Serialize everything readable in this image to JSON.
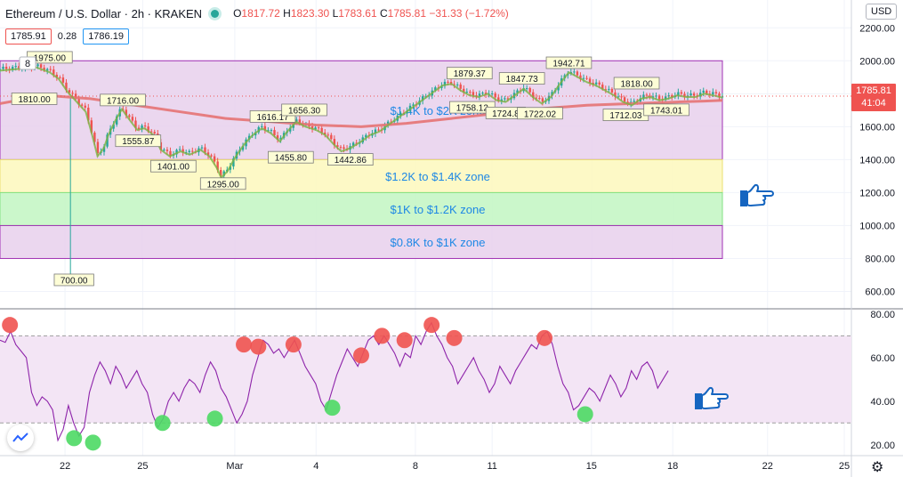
{
  "header": {
    "title": "Ethereum / U.S. Dollar · 2h · KRAKEN",
    "ohlc_o_label": "O",
    "ohlc_o": "1817.72",
    "ohlc_h_label": "H",
    "ohlc_h": "1823.30",
    "ohlc_l_label": "L",
    "ohlc_l": "1783.61",
    "ohlc_c_label": "C",
    "ohlc_c": "1785.81",
    "change": "−31.33 (−1.72%)",
    "bid": "1785.91",
    "spread": "0.28",
    "ask": "1786.19",
    "currency": "USD",
    "last_price": "1785.81",
    "countdown": "41:04",
    "indicator_count": "8"
  },
  "colors": {
    "up": "#26a69a",
    "down": "#ef5350",
    "ema": "#e57373",
    "ma_fast": "#7cb342",
    "zone_purple": "#ead5ef",
    "zone_yellow": "#fdf9c4",
    "zone_green": "#c9f7c9",
    "oscillator": "#8e24aa",
    "overbought_marker": "#ef5350",
    "oversold_marker": "#4cd964",
    "hand_icon": "#1565c0"
  },
  "chart_data": [
    {
      "type": "candlestick",
      "ylim": [
        500,
        2250
      ],
      "y_ticks": [
        600,
        800,
        1000,
        1200,
        1400,
        1600,
        1800,
        2000,
        2200
      ],
      "y_tick_labels": [
        "600.00",
        "800.00",
        "1000.00",
        "1200.00",
        "1400.00",
        "1600.00",
        "1800.00",
        "2000.00",
        "2200.00"
      ],
      "x_ticks": [
        "22",
        "25",
        "Mar",
        "4",
        "8",
        "11",
        "15",
        "18",
        "22",
        "25"
      ],
      "x_tick_pos": [
        0.072,
        0.158,
        0.26,
        0.35,
        0.46,
        0.545,
        0.655,
        0.745,
        0.85,
        0.935
      ],
      "zones": [
        {
          "label": "$1.4K to $2K zone",
          "low": 1400,
          "high": 2000,
          "color": "#ead5ef"
        },
        {
          "label": "$1.2K to $1.4K zone",
          "low": 1200,
          "high": 1400,
          "color": "#fdf9c4"
        },
        {
          "label": "$1K to $1.2K zone",
          "low": 1000,
          "high": 1200,
          "color": "#c9f7c9"
        },
        {
          "label": "$0.8K to $1K zone",
          "low": 800,
          "high": 1000,
          "color": "#ead5ef"
        }
      ],
      "price_path": [
        [
          0.0,
          1950
        ],
        [
          0.02,
          1960
        ],
        [
          0.04,
          1970
        ],
        [
          0.055,
          1940
        ],
        [
          0.065,
          1900
        ],
        [
          0.075,
          1820
        ],
        [
          0.085,
          1760
        ],
        [
          0.095,
          1700
        ],
        [
          0.102,
          1560
        ],
        [
          0.108,
          1430
        ],
        [
          0.115,
          1480
        ],
        [
          0.12,
          1560
        ],
        [
          0.128,
          1650
        ],
        [
          0.135,
          1716
        ],
        [
          0.145,
          1640
        ],
        [
          0.152,
          1590
        ],
        [
          0.16,
          1600
        ],
        [
          0.17,
          1560
        ],
        [
          0.178,
          1470
        ],
        [
          0.188,
          1430
        ],
        [
          0.2,
          1460
        ],
        [
          0.21,
          1440
        ],
        [
          0.222,
          1470
        ],
        [
          0.232,
          1430
        ],
        [
          0.24,
          1360
        ],
        [
          0.245,
          1300
        ],
        [
          0.252,
          1340
        ],
        [
          0.26,
          1420
        ],
        [
          0.27,
          1500
        ],
        [
          0.28,
          1560
        ],
        [
          0.29,
          1600
        ],
        [
          0.3,
          1570
        ],
        [
          0.31,
          1520
        ],
        [
          0.318,
          1580
        ],
        [
          0.328,
          1640
        ],
        [
          0.338,
          1610
        ],
        [
          0.35,
          1590
        ],
        [
          0.36,
          1560
        ],
        [
          0.37,
          1500
        ],
        [
          0.378,
          1460
        ],
        [
          0.388,
          1480
        ],
        [
          0.4,
          1520
        ],
        [
          0.41,
          1560
        ],
        [
          0.42,
          1580
        ],
        [
          0.43,
          1620
        ],
        [
          0.44,
          1660
        ],
        [
          0.45,
          1700
        ],
        [
          0.46,
          1740
        ],
        [
          0.47,
          1780
        ],
        [
          0.48,
          1820
        ],
        [
          0.49,
          1860
        ],
        [
          0.5,
          1870
        ],
        [
          0.51,
          1830
        ],
        [
          0.52,
          1800
        ],
        [
          0.53,
          1790
        ],
        [
          0.54,
          1810
        ],
        [
          0.55,
          1770
        ],
        [
          0.56,
          1760
        ],
        [
          0.57,
          1800
        ],
        [
          0.58,
          1840
        ],
        [
          0.59,
          1790
        ],
        [
          0.6,
          1750
        ],
        [
          0.61,
          1790
        ],
        [
          0.62,
          1870
        ],
        [
          0.63,
          1940
        ],
        [
          0.64,
          1910
        ],
        [
          0.65,
          1880
        ],
        [
          0.66,
          1860
        ],
        [
          0.67,
          1830
        ],
        [
          0.68,
          1800
        ],
        [
          0.69,
          1760
        ],
        [
          0.7,
          1740
        ],
        [
          0.71,
          1780
        ],
        [
          0.72,
          1790
        ],
        [
          0.73,
          1770
        ],
        [
          0.74,
          1780
        ],
        [
          0.75,
          1800
        ],
        [
          0.76,
          1790
        ],
        [
          0.77,
          1790
        ],
        [
          0.78,
          1810
        ],
        [
          0.79,
          1800
        ],
        [
          0.8,
          1786
        ]
      ],
      "wick_extremes": [
        {
          "x": 0.078,
          "low": 700,
          "label": "700.00"
        }
      ],
      "ema_path": [
        [
          0.0,
          1740
        ],
        [
          0.05,
          1790
        ],
        [
          0.1,
          1770
        ],
        [
          0.15,
          1730
        ],
        [
          0.2,
          1690
        ],
        [
          0.25,
          1650
        ],
        [
          0.3,
          1630
        ],
        [
          0.35,
          1610
        ],
        [
          0.4,
          1600
        ],
        [
          0.45,
          1620
        ],
        [
          0.5,
          1650
        ],
        [
          0.55,
          1680
        ],
        [
          0.6,
          1710
        ],
        [
          0.65,
          1730
        ],
        [
          0.7,
          1740
        ],
        [
          0.75,
          1750
        ],
        [
          0.78,
          1755
        ],
        [
          0.8,
          1760
        ]
      ],
      "annotations": [
        {
          "text": "1975.00",
          "x": 0.055,
          "y": 1975
        },
        {
          "text": "1810.00",
          "x": 0.038,
          "y": 1810
        },
        {
          "text": "1716.00",
          "x": 0.136,
          "y": 1716
        },
        {
          "text": "1555.87",
          "x": 0.153,
          "y": 1555
        },
        {
          "text": "1401.00",
          "x": 0.192,
          "y": 1401
        },
        {
          "text": "1295.00",
          "x": 0.247,
          "y": 1295
        },
        {
          "text": "1616.17",
          "x": 0.302,
          "y": 1616
        },
        {
          "text": "1656.30",
          "x": 0.337,
          "y": 1656
        },
        {
          "text": "1455.80",
          "x": 0.322,
          "y": 1455
        },
        {
          "text": "1442.86",
          "x": 0.388,
          "y": 1442
        },
        {
          "text": "1879.37",
          "x": 0.52,
          "y": 1879
        },
        {
          "text": "1758.12",
          "x": 0.523,
          "y": 1758
        },
        {
          "text": "1847.73",
          "x": 0.578,
          "y": 1847
        },
        {
          "text": "1724.8",
          "x": 0.56,
          "y": 1724
        },
        {
          "text": "1722.02",
          "x": 0.598,
          "y": 1722
        },
        {
          "text": "1942.71",
          "x": 0.63,
          "y": 1942
        },
        {
          "text": "1818.00",
          "x": 0.705,
          "y": 1818
        },
        {
          "text": "1712.03",
          "x": 0.693,
          "y": 1712
        },
        {
          "text": "1743.01",
          "x": 0.738,
          "y": 1743
        }
      ],
      "last_price": 1785.81
    },
    {
      "type": "line",
      "name": "",
      "ylim": [
        15,
        82
      ],
      "y_ticks": [
        20,
        40,
        60,
        80
      ],
      "y_tick_labels": [
        "20.00",
        "40.00",
        "60.00",
        "80.00"
      ],
      "bands": {
        "upper": 70,
        "lower": 30
      },
      "values": [
        68,
        67,
        72,
        66,
        63,
        60,
        44,
        38,
        42,
        40,
        36,
        22,
        27,
        38,
        30,
        24,
        28,
        44,
        52,
        58,
        54,
        48,
        56,
        52,
        46,
        50,
        54,
        48,
        44,
        34,
        28,
        32,
        40,
        44,
        40,
        46,
        50,
        48,
        44,
        52,
        58,
        54,
        46,
        42,
        36,
        30,
        34,
        40,
        52,
        60,
        68,
        66,
        62,
        64,
        60,
        64,
        68,
        62,
        56,
        52,
        48,
        40,
        36,
        44,
        52,
        58,
        64,
        60,
        56,
        62,
        68,
        70,
        66,
        70,
        66,
        62,
        56,
        62,
        60,
        70,
        66,
        72,
        76,
        70,
        66,
        60,
        56,
        48,
        52,
        56,
        60,
        54,
        50,
        44,
        48,
        56,
        52,
        48,
        54,
        58,
        62,
        66,
        64,
        70,
        72,
        66,
        56,
        48,
        44,
        36,
        38,
        42,
        46,
        44,
        40,
        46,
        52,
        48,
        42,
        46,
        54,
        50,
        56,
        58,
        54,
        46,
        50,
        54
      ],
      "overbought_points": [
        [
          0.011,
          75
        ],
        [
          0.27,
          66
        ],
        [
          0.286,
          65
        ],
        [
          0.325,
          66
        ],
        [
          0.4,
          61
        ],
        [
          0.423,
          70
        ],
        [
          0.448,
          68
        ],
        [
          0.478,
          75
        ],
        [
          0.503,
          69
        ],
        [
          0.603,
          69
        ]
      ],
      "oversold_points": [
        [
          0.082,
          23
        ],
        [
          0.103,
          21
        ],
        [
          0.18,
          30
        ],
        [
          0.238,
          32
        ],
        [
          0.368,
          37
        ],
        [
          0.648,
          34
        ]
      ]
    }
  ]
}
